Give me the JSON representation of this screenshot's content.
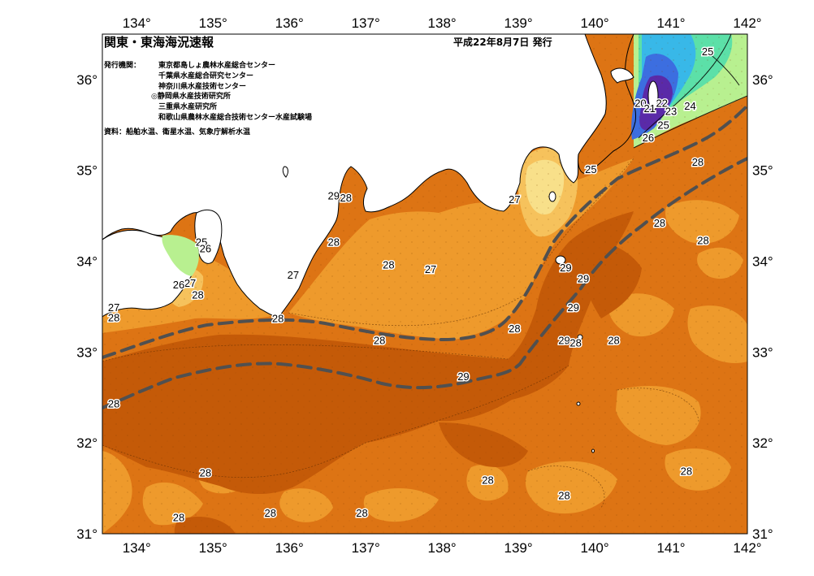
{
  "header": {
    "title": "関東・東海海況速報",
    "date": "平成22年8月7日 発行"
  },
  "issuers": {
    "label": "発行機関：",
    "orgs": [
      "東京都島しょ農林水産総合センター",
      "千葉県水産総合研究センター",
      "神奈川県水産技術センター",
      "◎静岡県水産技術研究所",
      "三重県水産研究所",
      "和歌山県農林水産総合技術センター水産試験場"
    ]
  },
  "source": "資料：船舶水温、衛星水温、気象庁解析水温",
  "axes": {
    "lon_ticks": [
      "134°",
      "135°",
      "136°",
      "137°",
      "138°",
      "139°",
      "140°",
      "141°",
      "142°"
    ],
    "lat_ticks": [
      "36°",
      "35°",
      "34°",
      "33°",
      "32°",
      "31°"
    ],
    "lon_range": [
      133.55,
      142
    ],
    "lat_range": [
      31,
      36.5
    ]
  },
  "colors": {
    "t29": "#c45a08",
    "t28": "#dd7414",
    "t27": "#ee9a2c",
    "t26": "#f6c25c",
    "t25": "#f8e08a",
    "t24": "#b8f090",
    "t23": "#5ce0a8",
    "t22": "#38b8e8",
    "t21": "#3c6ee0",
    "t20": "#5a2aa8",
    "land": "#ffffff",
    "kuroshio": "#505050"
  },
  "contour_labels": [
    {
      "text": "25",
      "lon": 141.48,
      "lat": 36.3
    },
    {
      "text": "20",
      "lon": 140.6,
      "lat": 35.73
    },
    {
      "text": "21",
      "lon": 140.72,
      "lat": 35.67
    },
    {
      "text": "22",
      "lon": 140.88,
      "lat": 35.73
    },
    {
      "text": "23",
      "lon": 141.0,
      "lat": 35.64
    },
    {
      "text": "24",
      "lon": 141.25,
      "lat": 35.7
    },
    {
      "text": "25",
      "lon": 140.9,
      "lat": 35.49
    },
    {
      "text": "26",
      "lon": 140.7,
      "lat": 35.35
    },
    {
      "text": "25",
      "lon": 139.95,
      "lat": 35.0
    },
    {
      "text": "28",
      "lon": 141.35,
      "lat": 35.08
    },
    {
      "text": "29",
      "lon": 136.58,
      "lat": 34.71
    },
    {
      "text": "28",
      "lon": 136.74,
      "lat": 34.69
    },
    {
      "text": "27",
      "lon": 138.95,
      "lat": 34.67
    },
    {
      "text": "25",
      "lon": 134.85,
      "lat": 34.2
    },
    {
      "text": "26",
      "lon": 134.9,
      "lat": 34.13
    },
    {
      "text": "28",
      "lon": 136.58,
      "lat": 34.2
    },
    {
      "text": "28",
      "lon": 140.85,
      "lat": 34.41
    },
    {
      "text": "28",
      "lon": 141.42,
      "lat": 34.22
    },
    {
      "text": "28",
      "lon": 137.3,
      "lat": 33.95
    },
    {
      "text": "27",
      "lon": 137.85,
      "lat": 33.9
    },
    {
      "text": "27",
      "lon": 136.05,
      "lat": 33.84
    },
    {
      "text": "29",
      "lon": 139.62,
      "lat": 33.92
    },
    {
      "text": "29",
      "lon": 139.85,
      "lat": 33.8
    },
    {
      "text": "27",
      "lon": 134.7,
      "lat": 33.75
    },
    {
      "text": "26",
      "lon": 134.55,
      "lat": 33.73
    },
    {
      "text": "28",
      "lon": 134.8,
      "lat": 33.62
    },
    {
      "text": "27",
      "lon": 133.7,
      "lat": 33.48
    },
    {
      "text": "28",
      "lon": 133.7,
      "lat": 33.37
    },
    {
      "text": "28",
      "lon": 135.85,
      "lat": 33.36
    },
    {
      "text": "29",
      "lon": 139.72,
      "lat": 33.48
    },
    {
      "text": "28",
      "lon": 138.95,
      "lat": 33.25
    },
    {
      "text": "28",
      "lon": 137.18,
      "lat": 33.12
    },
    {
      "text": "29",
      "lon": 139.6,
      "lat": 33.12
    },
    {
      "text": "28",
      "lon": 139.75,
      "lat": 33.09
    },
    {
      "text": "28",
      "lon": 140.25,
      "lat": 33.12
    },
    {
      "text": "29",
      "lon": 138.28,
      "lat": 32.72
    },
    {
      "text": "28",
      "lon": 133.7,
      "lat": 32.42
    },
    {
      "text": "28",
      "lon": 134.9,
      "lat": 31.66
    },
    {
      "text": "28",
      "lon": 141.2,
      "lat": 31.68
    },
    {
      "text": "28",
      "lon": 138.6,
      "lat": 31.58
    },
    {
      "text": "28",
      "lon": 139.6,
      "lat": 31.41
    },
    {
      "text": "28",
      "lon": 134.55,
      "lat": 31.17
    },
    {
      "text": "28",
      "lon": 135.75,
      "lat": 31.22
    },
    {
      "text": "28",
      "lon": 136.95,
      "lat": 31.22
    }
  ]
}
